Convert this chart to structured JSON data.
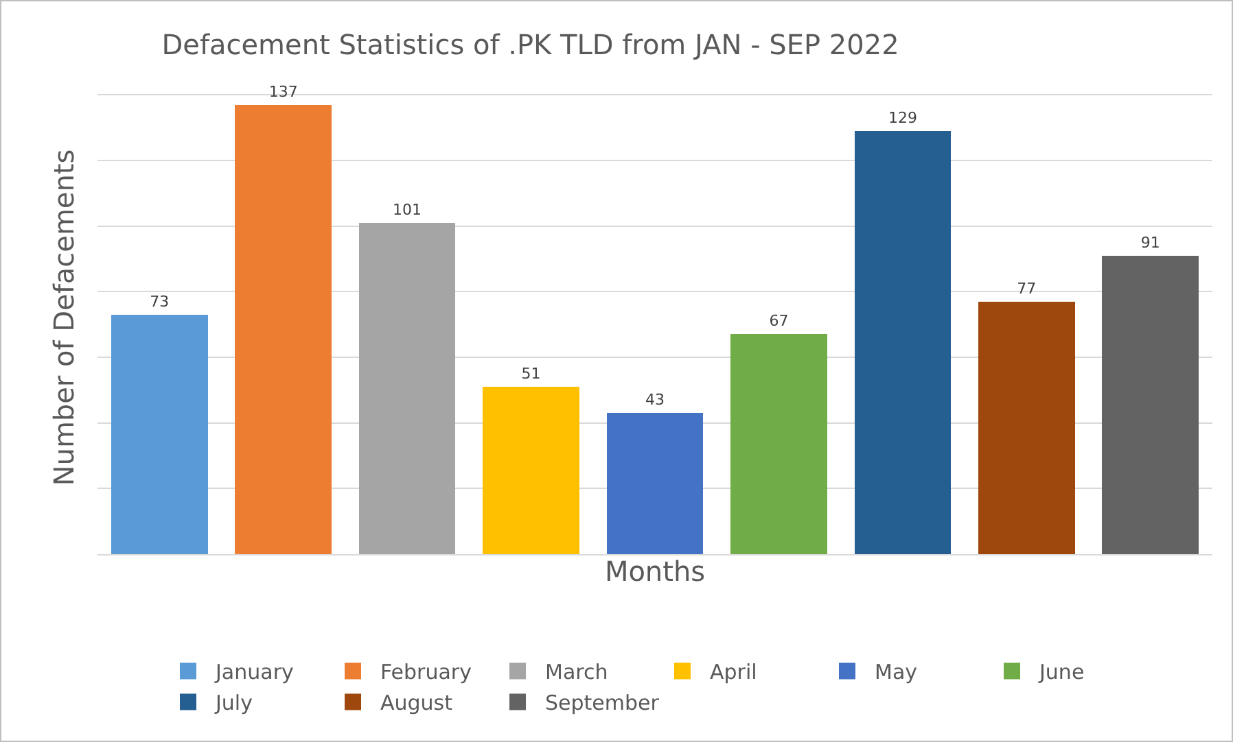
{
  "chart_data": {
    "type": "bar",
    "title": "Defacement Statistics of .PK TLD from JAN - SEP 2022",
    "xlabel": "Months",
    "ylabel": "Number of Defacements",
    "categories": [
      null,
      null,
      null,
      null,
      null,
      null,
      null,
      null,
      null
    ],
    "series": [
      {
        "name": "January",
        "color": "#5b9bd5",
        "values": [
          73,
          null,
          null,
          null,
          null,
          null,
          null,
          null,
          null
        ]
      },
      {
        "name": "February",
        "color": "#ed7d31",
        "values": [
          null,
          137,
          null,
          null,
          null,
          null,
          null,
          null,
          null
        ]
      },
      {
        "name": "March",
        "color": "#a5a5a5",
        "values": [
          null,
          null,
          101,
          null,
          null,
          null,
          null,
          null,
          null
        ]
      },
      {
        "name": "April",
        "color": "#ffc000",
        "values": [
          null,
          null,
          null,
          51,
          null,
          null,
          null,
          null,
          null
        ]
      },
      {
        "name": "May",
        "color": "#4472c4",
        "values": [
          null,
          null,
          null,
          null,
          43,
          null,
          null,
          null,
          null
        ]
      },
      {
        "name": "June",
        "color": "#70ad47",
        "values": [
          null,
          null,
          null,
          null,
          null,
          67,
          null,
          null,
          null
        ]
      },
      {
        "name": "July",
        "color": "#255e91",
        "values": [
          null,
          null,
          null,
          null,
          null,
          null,
          129,
          null,
          null
        ]
      },
      {
        "name": "August",
        "color": "#9e480e",
        "values": [
          null,
          null,
          null,
          null,
          null,
          null,
          null,
          77,
          null
        ]
      },
      {
        "name": "September",
        "color": "#636363",
        "values": [
          null,
          null,
          null,
          null,
          null,
          null,
          null,
          null,
          91
        ]
      }
    ],
    "stacked": true,
    "tick_labels": false,
    "grid": "y",
    "data_labels": true,
    "legend": "bottom"
  }
}
